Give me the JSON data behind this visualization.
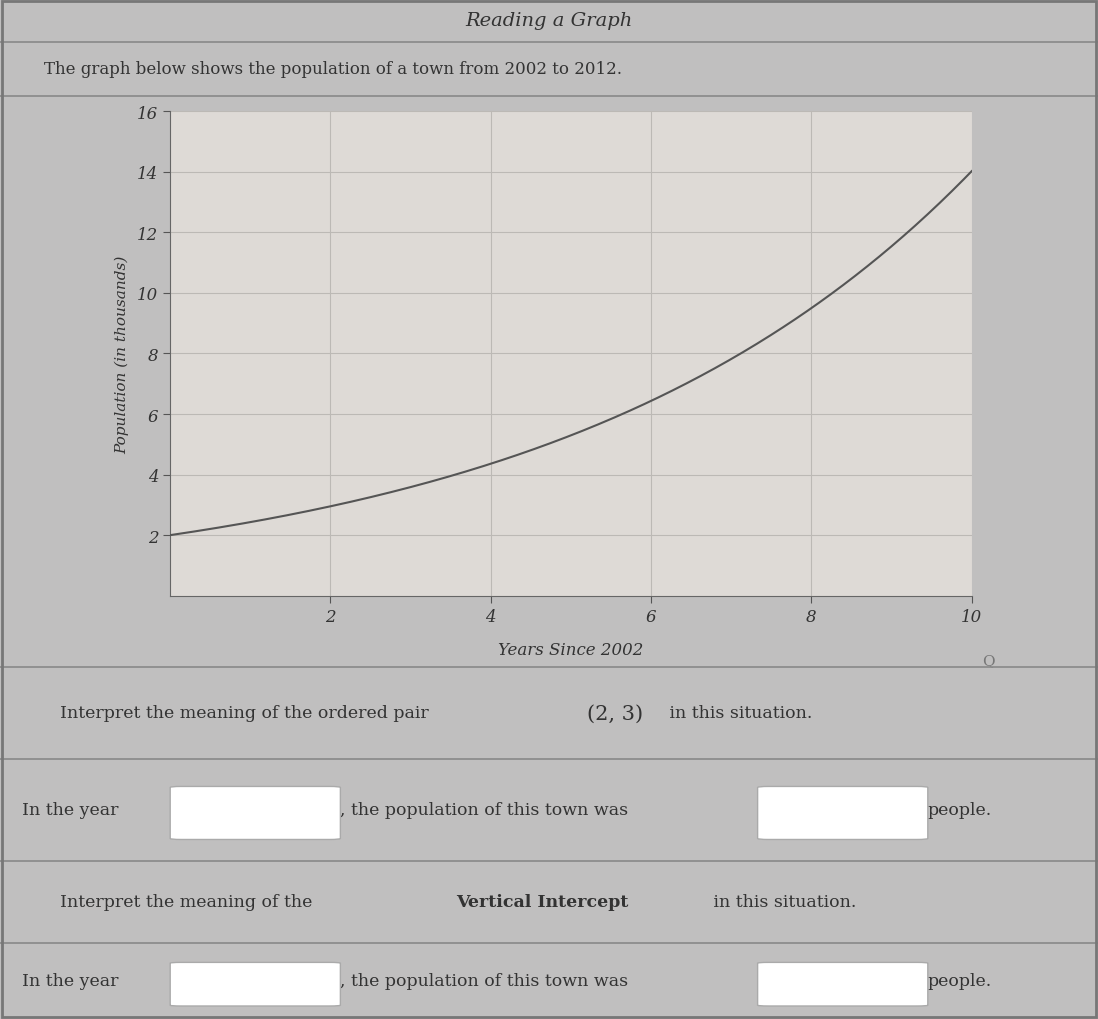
{
  "title": "Reading a Graph",
  "subtitle": "The graph below shows the population of a town from 2002 to 2012.",
  "xlabel": "Years Since 2002",
  "ylabel": "Population (in thousands)",
  "xlim": [
    0,
    10
  ],
  "ylim": [
    0,
    16
  ],
  "xticks": [
    2,
    4,
    6,
    8,
    10
  ],
  "yticks": [
    2,
    4,
    6,
    8,
    10,
    12,
    14,
    16
  ],
  "curve_color": "#555555",
  "curve_a": 2.0,
  "curve_r": 1.215,
  "fig_bg_color": "#c0bfbf",
  "plot_area_bg": "#d4d0cc",
  "graph_bg": "#dedad6",
  "grid_color": "#bcb9b5",
  "text_color": "#333333",
  "box_color": "#ffffff",
  "border_color": "#aaaaaa",
  "section_bg": "#c8c5c2",
  "header_bg": "#cac7c4",
  "sep_color": "#888888",
  "ordered_pair": "(2, 3)"
}
